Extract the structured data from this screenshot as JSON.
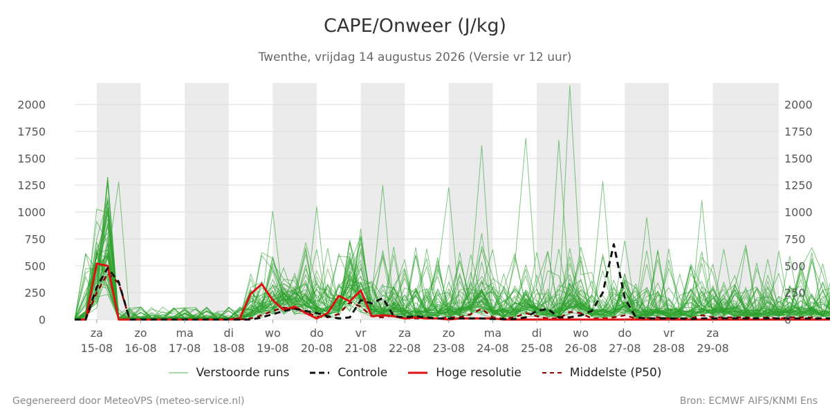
{
  "colors": {
    "ensemble": "#2ca02c",
    "control": "#111111",
    "hires": "#dd1111",
    "median": "#8b0000",
    "weekend_band": "#ebebeb",
    "grid": "#dddddd"
  },
  "footer": {
    "left": "Gegenereerd door MeteoVPS (meteo-service.nl)",
    "right": "Bron: ECMWF AIFS/KNMI Ens"
  },
  "chart_data": {
    "type": "line",
    "title": "CAPE/Onweer (J/kg)",
    "subtitle": "Twenthe, vrijdag 14 augustus 2026 (Versie vr 12 uur)",
    "xlabel": "",
    "ylabel": "",
    "ylim": [
      0,
      2200
    ],
    "yticks": [
      0,
      250,
      500,
      750,
      1000,
      1250,
      1500,
      1750,
      2000
    ],
    "xlim": [
      "2026-08-14T12:00",
      "2026-08-30T12:00"
    ],
    "step_hours": 6,
    "grid": "horizontal",
    "legend_position": "bottom",
    "x_ticks": [
      {
        "day": "za",
        "date": "15-08",
        "t": "2026-08-15T00:00"
      },
      {
        "day": "zo",
        "date": "16-08",
        "t": "2026-08-16T00:00"
      },
      {
        "day": "ma",
        "date": "17-08",
        "t": "2026-08-17T00:00"
      },
      {
        "day": "di",
        "date": "18-08",
        "t": "2026-08-18T00:00"
      },
      {
        "day": "wo",
        "date": "19-08",
        "t": "2026-08-19T00:00"
      },
      {
        "day": "do",
        "date": "20-08",
        "t": "2026-08-20T00:00"
      },
      {
        "day": "vr",
        "date": "21-08",
        "t": "2026-08-21T00:00"
      },
      {
        "day": "za",
        "date": "22-08",
        "t": "2026-08-22T00:00"
      },
      {
        "day": "zo",
        "date": "23-08",
        "t": "2026-08-23T00:00"
      },
      {
        "day": "ma",
        "date": "24-08",
        "t": "2026-08-24T00:00"
      },
      {
        "day": "di",
        "date": "25-08",
        "t": "2026-08-25T00:00"
      },
      {
        "day": "wo",
        "date": "26-08",
        "t": "2026-08-26T00:00"
      },
      {
        "day": "do",
        "date": "27-08",
        "t": "2026-08-27T00:00"
      },
      {
        "day": "vr",
        "date": "28-08",
        "t": "2026-08-28T00:00"
      },
      {
        "day": "za",
        "date": "29-08",
        "t": "2026-08-29T00:00"
      }
    ],
    "weekend_bands": [
      [
        "2026-08-15T00:00",
        "2026-08-16T00:00"
      ],
      [
        "2026-08-17T00:00",
        "2026-08-18T00:00"
      ],
      [
        "2026-08-19T00:00",
        "2026-08-20T00:00"
      ],
      [
        "2026-08-21T00:00",
        "2026-08-22T00:00"
      ],
      [
        "2026-08-23T00:00",
        "2026-08-24T00:00"
      ],
      [
        "2026-08-25T00:00",
        "2026-08-26T00:00"
      ],
      [
        "2026-08-27T00:00",
        "2026-08-28T00:00"
      ],
      [
        "2026-08-29T00:00",
        "2026-08-30T12:00"
      ]
    ],
    "legend": [
      {
        "label": "Verstoorde runs",
        "style": "thin-line",
        "color": "#2ca02c"
      },
      {
        "label": "Controle",
        "style": "dashed",
        "color": "#111111"
      },
      {
        "label": "Hoge resolutie",
        "style": "solid-thick",
        "color": "#dd1111"
      },
      {
        "label": "Middelste (P50)",
        "style": "dashed",
        "color": "#8b0000"
      }
    ],
    "series": [
      {
        "name": "Controle",
        "values": [
          0,
          0,
          300,
          480,
          350,
          0,
          0,
          0,
          0,
          0,
          0,
          0,
          0,
          0,
          0,
          0,
          0,
          20,
          50,
          80,
          100,
          80,
          60,
          30,
          10,
          20,
          180,
          150,
          200,
          30,
          20,
          30,
          20,
          10,
          10,
          10,
          10,
          10,
          5,
          5,
          5,
          20,
          80,
          100,
          20,
          20,
          40,
          80,
          250,
          700,
          200,
          20,
          10,
          10,
          10,
          10,
          5,
          10,
          10,
          10,
          10,
          10,
          10,
          10,
          10,
          10,
          10,
          10,
          10,
          10,
          10,
          10,
          10,
          10
        ]
      },
      {
        "name": "Hoge resolutie",
        "values": [
          0,
          0,
          520,
          500,
          0,
          0,
          0,
          0,
          0,
          0,
          0,
          0,
          0,
          0,
          0,
          10,
          240,
          330,
          180,
          90,
          120,
          60,
          10,
          60,
          220,
          170,
          270,
          30,
          40,
          30,
          10,
          20,
          10,
          10,
          0,
          10,
          10,
          10,
          10,
          0,
          0,
          0,
          0,
          0,
          0,
          0,
          0,
          0,
          0,
          0,
          0,
          0,
          0,
          0,
          0,
          0,
          0,
          0,
          0,
          0,
          0,
          0,
          0,
          0,
          0,
          0,
          0,
          0,
          0,
          0,
          0,
          0,
          0,
          0
        ]
      },
      {
        "name": "Middelste (P50)",
        "values": [
          0,
          0,
          250,
          430,
          340,
          0,
          0,
          0,
          0,
          0,
          0,
          0,
          0,
          0,
          0,
          0,
          10,
          40,
          80,
          110,
          100,
          70,
          30,
          20,
          50,
          160,
          120,
          30,
          20,
          40,
          10,
          10,
          10,
          10,
          20,
          20,
          50,
          100,
          20,
          10,
          20,
          60,
          30,
          10,
          10,
          70,
          60,
          10,
          10,
          20,
          40,
          10,
          10,
          20,
          10,
          10,
          10,
          40,
          20,
          20,
          20,
          20,
          10,
          20,
          10,
          20,
          20,
          20,
          10,
          10,
          10,
          10,
          10,
          10
        ]
      }
    ],
    "ensemble": {
      "label": "Verstoorde runs",
      "members": 50,
      "peaks": [
        {
          "t": "2026-08-15T00:00",
          "value": 240
        },
        {
          "t": "2026-08-15T12:00",
          "value": 1280
        },
        {
          "t": "2026-08-19T00:00",
          "value": 1010
        },
        {
          "t": "2026-08-20T00:00",
          "value": 1050
        },
        {
          "t": "2026-08-21T12:00",
          "value": 1250
        },
        {
          "t": "2026-08-23T00:00",
          "value": 1230
        },
        {
          "t": "2026-08-23T18:00",
          "value": 1620
        },
        {
          "t": "2026-08-24T18:00",
          "value": 1690
        },
        {
          "t": "2026-08-25T12:00",
          "value": 1670
        },
        {
          "t": "2026-08-25T18:00",
          "value": 2180
        },
        {
          "t": "2026-08-26T12:00",
          "value": 1290
        },
        {
          "t": "2026-08-27T12:00",
          "value": 950
        },
        {
          "t": "2026-08-28T18:00",
          "value": 1110
        }
      ]
    }
  }
}
